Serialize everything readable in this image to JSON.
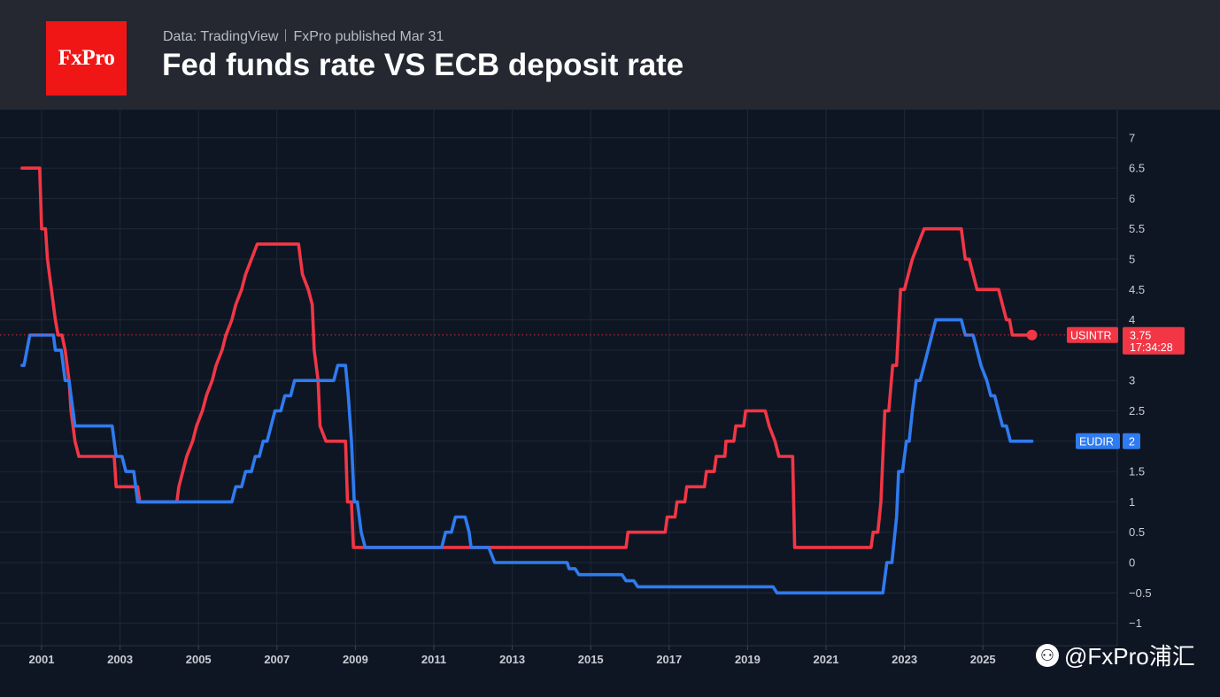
{
  "header": {
    "logo_text": "FxPro",
    "data_source": "Data: TradingView",
    "published": "FxPro published Mar 31",
    "title": "Fed funds rate VS ECB deposit rate"
  },
  "watermark": {
    "text": "@FxPro浦汇",
    "icon": "weibo-icon"
  },
  "colors": {
    "background": "#0e1624",
    "header_bg": "#252831",
    "logo_bg": "#f01616",
    "fed": "#f23645",
    "ecb": "#2f7bf0",
    "grid": "#1f2836"
  },
  "chart_data": {
    "type": "line",
    "title": "Fed funds rate VS ECB deposit rate",
    "xlabel": "",
    "ylabel": "",
    "x_ticks": [
      "2001",
      "2003",
      "2005",
      "2007",
      "2009",
      "2011",
      "2013",
      "2015",
      "2017",
      "2019",
      "2021",
      "2023",
      "2025"
    ],
    "y_ticks": [
      "−1",
      "−0.5",
      "0",
      "0.5",
      "1",
      "1.5",
      "2",
      "2.5",
      "3",
      "3.5",
      "4",
      "4.5",
      "5",
      "5.5",
      "6",
      "6.5",
      "7"
    ],
    "xlim": [
      2000.5,
      2026.6
    ],
    "ylim": [
      -1.4,
      7.5
    ],
    "grid": true,
    "series": [
      {
        "name": "USINTR",
        "last_value": "3.75",
        "countdown": "17:34:28",
        "points": [
          [
            2000.5,
            6.5
          ],
          [
            2000.95,
            6.5
          ],
          [
            2001.0,
            5.5
          ],
          [
            2001.1,
            5.5
          ],
          [
            2001.15,
            5.0
          ],
          [
            2001.25,
            4.5
          ],
          [
            2001.35,
            4.0
          ],
          [
            2001.42,
            3.75
          ],
          [
            2001.52,
            3.75
          ],
          [
            2001.6,
            3.5
          ],
          [
            2001.7,
            3.0
          ],
          [
            2001.75,
            2.5
          ],
          [
            2001.85,
            2.0
          ],
          [
            2001.95,
            1.75
          ],
          [
            2002.85,
            1.75
          ],
          [
            2002.9,
            1.25
          ],
          [
            2003.45,
            1.25
          ],
          [
            2003.5,
            1.0
          ],
          [
            2004.45,
            1.0
          ],
          [
            2004.5,
            1.25
          ],
          [
            2004.6,
            1.5
          ],
          [
            2004.7,
            1.75
          ],
          [
            2004.85,
            2.0
          ],
          [
            2004.95,
            2.25
          ],
          [
            2005.1,
            2.5
          ],
          [
            2005.2,
            2.75
          ],
          [
            2005.35,
            3.0
          ],
          [
            2005.45,
            3.25
          ],
          [
            2005.6,
            3.5
          ],
          [
            2005.7,
            3.75
          ],
          [
            2005.85,
            4.0
          ],
          [
            2005.95,
            4.25
          ],
          [
            2006.1,
            4.5
          ],
          [
            2006.2,
            4.75
          ],
          [
            2006.35,
            5.0
          ],
          [
            2006.5,
            5.25
          ],
          [
            2007.55,
            5.25
          ],
          [
            2007.65,
            4.75
          ],
          [
            2007.8,
            4.5
          ],
          [
            2007.9,
            4.25
          ],
          [
            2007.95,
            3.5
          ],
          [
            2008.05,
            3.0
          ],
          [
            2008.1,
            2.25
          ],
          [
            2008.25,
            2.0
          ],
          [
            2008.75,
            2.0
          ],
          [
            2008.8,
            1.0
          ],
          [
            2008.9,
            1.0
          ],
          [
            2008.95,
            0.25
          ],
          [
            2015.9,
            0.25
          ],
          [
            2015.95,
            0.5
          ],
          [
            2016.9,
            0.5
          ],
          [
            2016.95,
            0.75
          ],
          [
            2017.15,
            0.75
          ],
          [
            2017.2,
            1.0
          ],
          [
            2017.4,
            1.0
          ],
          [
            2017.45,
            1.25
          ],
          [
            2017.9,
            1.25
          ],
          [
            2017.95,
            1.5
          ],
          [
            2018.15,
            1.5
          ],
          [
            2018.2,
            1.75
          ],
          [
            2018.42,
            1.75
          ],
          [
            2018.45,
            2.0
          ],
          [
            2018.65,
            2.0
          ],
          [
            2018.7,
            2.25
          ],
          [
            2018.9,
            2.25
          ],
          [
            2018.95,
            2.5
          ],
          [
            2019.45,
            2.5
          ],
          [
            2019.55,
            2.25
          ],
          [
            2019.7,
            2.0
          ],
          [
            2019.8,
            1.75
          ],
          [
            2020.15,
            1.75
          ],
          [
            2020.2,
            0.25
          ],
          [
            2022.15,
            0.25
          ],
          [
            2022.2,
            0.5
          ],
          [
            2022.32,
            0.5
          ],
          [
            2022.4,
            1.0
          ],
          [
            2022.5,
            2.5
          ],
          [
            2022.6,
            2.5
          ],
          [
            2022.7,
            3.25
          ],
          [
            2022.8,
            3.25
          ],
          [
            2022.9,
            4.5
          ],
          [
            2023.0,
            4.5
          ],
          [
            2023.1,
            4.75
          ],
          [
            2023.2,
            5.0
          ],
          [
            2023.35,
            5.25
          ],
          [
            2023.5,
            5.5
          ],
          [
            2024.45,
            5.5
          ],
          [
            2024.55,
            5.0
          ],
          [
            2024.65,
            5.0
          ],
          [
            2024.75,
            4.75
          ],
          [
            2024.85,
            4.5
          ],
          [
            2025.4,
            4.5
          ],
          [
            2025.5,
            4.25
          ],
          [
            2025.6,
            4.0
          ],
          [
            2025.68,
            4.0
          ],
          [
            2025.75,
            3.75
          ],
          [
            2026.25,
            3.75
          ]
        ]
      },
      {
        "name": "EUDIR",
        "last_value": "2",
        "points": [
          [
            2000.5,
            3.25
          ],
          [
            2000.55,
            3.25
          ],
          [
            2000.7,
            3.75
          ],
          [
            2001.3,
            3.75
          ],
          [
            2001.35,
            3.5
          ],
          [
            2001.5,
            3.5
          ],
          [
            2001.6,
            3.0
          ],
          [
            2001.7,
            3.0
          ],
          [
            2001.75,
            2.75
          ],
          [
            2001.85,
            2.25
          ],
          [
            2002.8,
            2.25
          ],
          [
            2002.9,
            1.75
          ],
          [
            2003.05,
            1.75
          ],
          [
            2003.15,
            1.5
          ],
          [
            2003.35,
            1.5
          ],
          [
            2003.45,
            1.0
          ],
          [
            2005.85,
            1.0
          ],
          [
            2005.95,
            1.25
          ],
          [
            2006.1,
            1.25
          ],
          [
            2006.2,
            1.5
          ],
          [
            2006.35,
            1.5
          ],
          [
            2006.45,
            1.75
          ],
          [
            2006.55,
            1.75
          ],
          [
            2006.65,
            2.0
          ],
          [
            2006.75,
            2.0
          ],
          [
            2006.85,
            2.25
          ],
          [
            2006.95,
            2.5
          ],
          [
            2007.1,
            2.5
          ],
          [
            2007.2,
            2.75
          ],
          [
            2007.35,
            2.75
          ],
          [
            2007.45,
            3.0
          ],
          [
            2008.45,
            3.0
          ],
          [
            2008.55,
            3.25
          ],
          [
            2008.75,
            3.25
          ],
          [
            2008.82,
            2.75
          ],
          [
            2008.9,
            2.0
          ],
          [
            2008.97,
            1.0
          ],
          [
            2009.05,
            1.0
          ],
          [
            2009.15,
            0.5
          ],
          [
            2009.25,
            0.25
          ],
          [
            2011.2,
            0.25
          ],
          [
            2011.3,
            0.5
          ],
          [
            2011.45,
            0.5
          ],
          [
            2011.55,
            0.75
          ],
          [
            2011.8,
            0.75
          ],
          [
            2011.9,
            0.5
          ],
          [
            2011.95,
            0.25
          ],
          [
            2012.4,
            0.25
          ],
          [
            2012.55,
            0.0
          ],
          [
            2014.4,
            0.0
          ],
          [
            2014.45,
            -0.1
          ],
          [
            2014.6,
            -0.1
          ],
          [
            2014.7,
            -0.2
          ],
          [
            2015.8,
            -0.2
          ],
          [
            2015.9,
            -0.3
          ],
          [
            2016.1,
            -0.3
          ],
          [
            2016.2,
            -0.4
          ],
          [
            2019.65,
            -0.4
          ],
          [
            2019.75,
            -0.5
          ],
          [
            2022.45,
            -0.5
          ],
          [
            2022.55,
            0.0
          ],
          [
            2022.68,
            0.0
          ],
          [
            2022.8,
            0.75
          ],
          [
            2022.85,
            1.5
          ],
          [
            2022.95,
            1.5
          ],
          [
            2023.05,
            2.0
          ],
          [
            2023.12,
            2.0
          ],
          [
            2023.2,
            2.5
          ],
          [
            2023.3,
            3.0
          ],
          [
            2023.4,
            3.0
          ],
          [
            2023.5,
            3.25
          ],
          [
            2023.6,
            3.5
          ],
          [
            2023.7,
            3.75
          ],
          [
            2023.8,
            4.0
          ],
          [
            2024.45,
            4.0
          ],
          [
            2024.55,
            3.75
          ],
          [
            2024.75,
            3.75
          ],
          [
            2024.85,
            3.5
          ],
          [
            2024.95,
            3.25
          ],
          [
            2025.1,
            3.0
          ],
          [
            2025.2,
            2.75
          ],
          [
            2025.3,
            2.75
          ],
          [
            2025.4,
            2.5
          ],
          [
            2025.5,
            2.25
          ],
          [
            2025.6,
            2.25
          ],
          [
            2025.7,
            2.0
          ],
          [
            2026.25,
            2.0
          ]
        ]
      }
    ]
  }
}
